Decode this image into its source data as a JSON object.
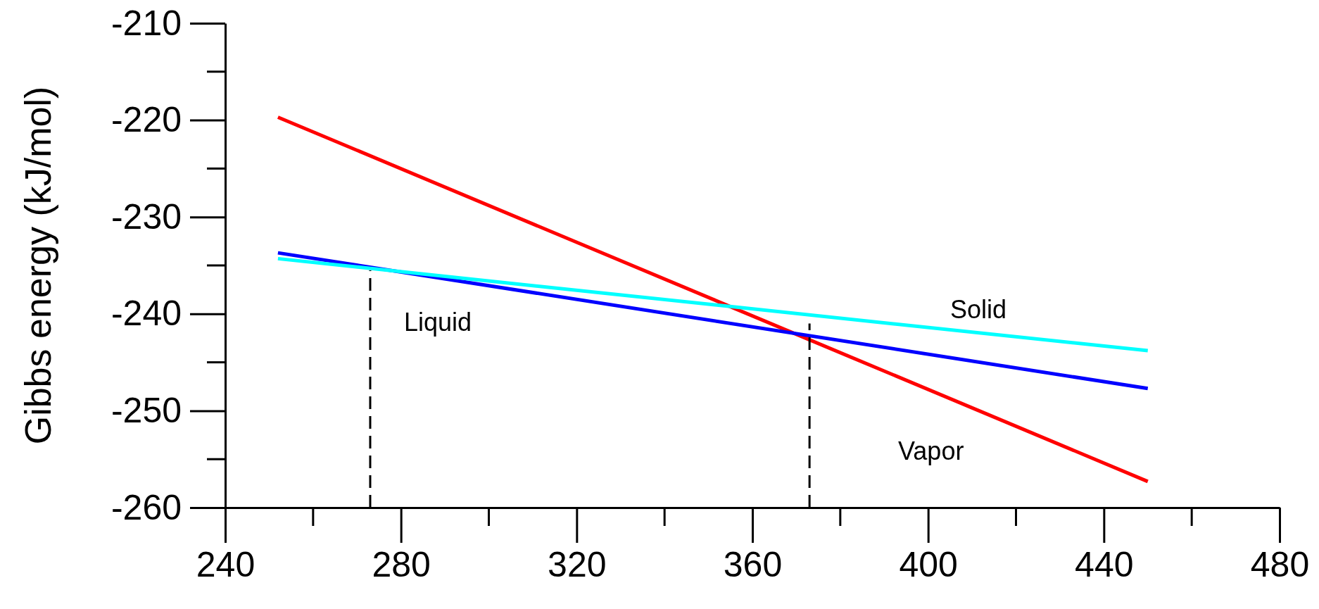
{
  "chart_data": {
    "type": "line",
    "ylabel": "Gibbs energy (kJ/mol)",
    "xlim": [
      240,
      480
    ],
    "ylim": [
      -260,
      -210
    ],
    "xticks": [
      240,
      280,
      320,
      360,
      400,
      440,
      480
    ],
    "yticks": [
      -260,
      -250,
      -240,
      -230,
      -220,
      -210
    ],
    "grid": false,
    "marker": "none",
    "series": [
      {
        "color": "#ff0000",
        "x": [
          252,
          450
        ],
        "values": [
          -219.7,
          -257.3
        ]
      },
      {
        "color": "#0000ff",
        "x": [
          252,
          450
        ],
        "values": [
          -233.7,
          -247.7
        ]
      },
      {
        "color": "#00ffff",
        "x": [
          252,
          450
        ],
        "values": [
          -234.3,
          -243.8
        ]
      },
      {
        "color": "#000000",
        "x": [
          273,
          273
        ],
        "values": [
          -260,
          -235.5
        ],
        "line_style": "dashed"
      },
      {
        "color": "#000000",
        "x": [
          373,
          373
        ],
        "values": [
          -260,
          -241
        ],
        "line_style": "dashed"
      }
    ],
    "annotations": [
      "Liquid",
      "Solid",
      "Vapor"
    ]
  }
}
